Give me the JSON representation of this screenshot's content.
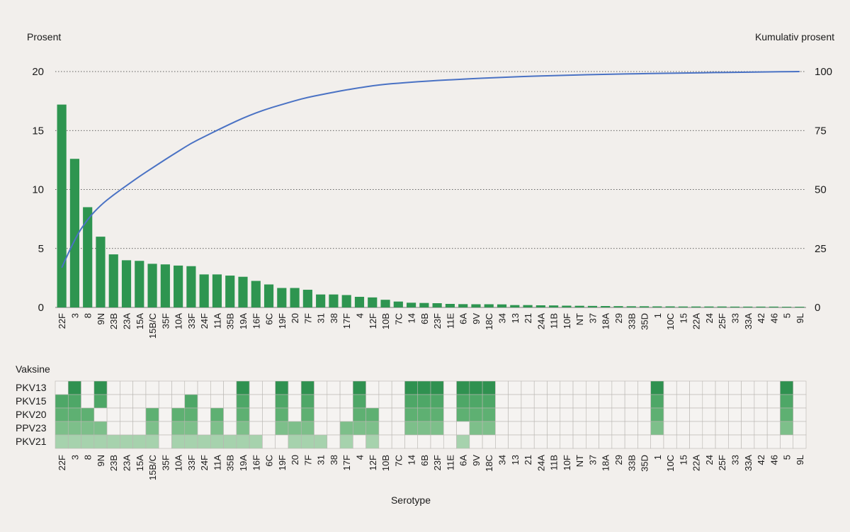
{
  "chart_data": {
    "type": "bar",
    "left_axis_label": "Prosent",
    "right_axis_label": "Kumulativ prosent",
    "xlabel": "Serotype",
    "heatmap_title": "Vaksine",
    "left_ylim": [
      0,
      20
    ],
    "left_ticks": [
      "0",
      "5",
      "10",
      "15",
      "20"
    ],
    "right_ylim": [
      0,
      100
    ],
    "right_ticks": [
      "0",
      "25",
      "50",
      "75",
      "100"
    ],
    "grid": "dotted horizontal",
    "categories": [
      "22F",
      "3",
      "8",
      "9N",
      "23B",
      "23A",
      "15A",
      "15B/C",
      "35F",
      "10A",
      "33F",
      "24F",
      "11A",
      "35B",
      "19A",
      "16F",
      "6C",
      "19F",
      "20",
      "7F",
      "31",
      "38",
      "17F",
      "4",
      "12F",
      "10B",
      "7C",
      "14",
      "6B",
      "23F",
      "11E",
      "6A",
      "9V",
      "18C",
      "34",
      "13",
      "21",
      "24A",
      "11B",
      "10F",
      "NT",
      "37",
      "18A",
      "29",
      "33B",
      "35D",
      "1",
      "10C",
      "15",
      "22A",
      "24",
      "25F",
      "33",
      "33A",
      "42",
      "46",
      "5",
      "9L"
    ],
    "values": [
      17.2,
      12.6,
      8.5,
      6.0,
      4.5,
      4.0,
      3.95,
      3.7,
      3.65,
      3.55,
      3.5,
      2.8,
      2.8,
      2.7,
      2.6,
      2.25,
      1.95,
      1.65,
      1.65,
      1.5,
      1.1,
      1.1,
      1.05,
      0.9,
      0.85,
      0.65,
      0.5,
      0.4,
      0.38,
      0.36,
      0.3,
      0.28,
      0.27,
      0.27,
      0.26,
      0.2,
      0.2,
      0.18,
      0.17,
      0.15,
      0.14,
      0.13,
      0.12,
      0.11,
      0.1,
      0.1,
      0.09,
      0.09,
      0.08,
      0.08,
      0.08,
      0.08,
      0.07,
      0.07,
      0.07,
      0.07,
      0.06,
      0.06
    ],
    "cumulative_line": "smooth curve rising from about 17 to 100",
    "bar_color": "#2e9550",
    "line_color": "#4a72c4",
    "vaccines": [
      {
        "name": "PKV13",
        "covered": [
          "3",
          "9N",
          "19A",
          "19F",
          "7F",
          "4",
          "14",
          "6B",
          "23F",
          "6A",
          "9V",
          "18C",
          "1",
          "5"
        ]
      },
      {
        "name": "PKV15",
        "covered": [
          "22F",
          "3",
          "9N",
          "33F",
          "19A",
          "19F",
          "7F",
          "4",
          "14",
          "6B",
          "23F",
          "6A",
          "9V",
          "18C",
          "1",
          "5"
        ]
      },
      {
        "name": "PKV20",
        "covered": [
          "22F",
          "3",
          "8",
          "15B/C",
          "10A",
          "33F",
          "11A",
          "19A",
          "19F",
          "7F",
          "4",
          "12F",
          "14",
          "6B",
          "23F",
          "6A",
          "9V",
          "18C",
          "1",
          "5"
        ]
      },
      {
        "name": "PPV23",
        "covered": [
          "22F",
          "3",
          "8",
          "9N",
          "15B/C",
          "10A",
          "33F",
          "11A",
          "19A",
          "19F",
          "20",
          "7F",
          "17F",
          "4",
          "12F",
          "14",
          "6B",
          "23F",
          "9V",
          "18C",
          "1",
          "5"
        ]
      },
      {
        "name": "PKV21",
        "covered": [
          "22F",
          "3",
          "8",
          "9N",
          "23B",
          "23A",
          "15A",
          "15B/C",
          "10A",
          "33F",
          "24F",
          "11A",
          "35B",
          "19A",
          "16F",
          "20",
          "7F",
          "31",
          "17F",
          "12F",
          "6A"
        ]
      }
    ],
    "vaccine_colors": [
      "#2f9150",
      "#4ea767",
      "#5eb072",
      "#7dbf8a",
      "#a6d2ad"
    ]
  }
}
